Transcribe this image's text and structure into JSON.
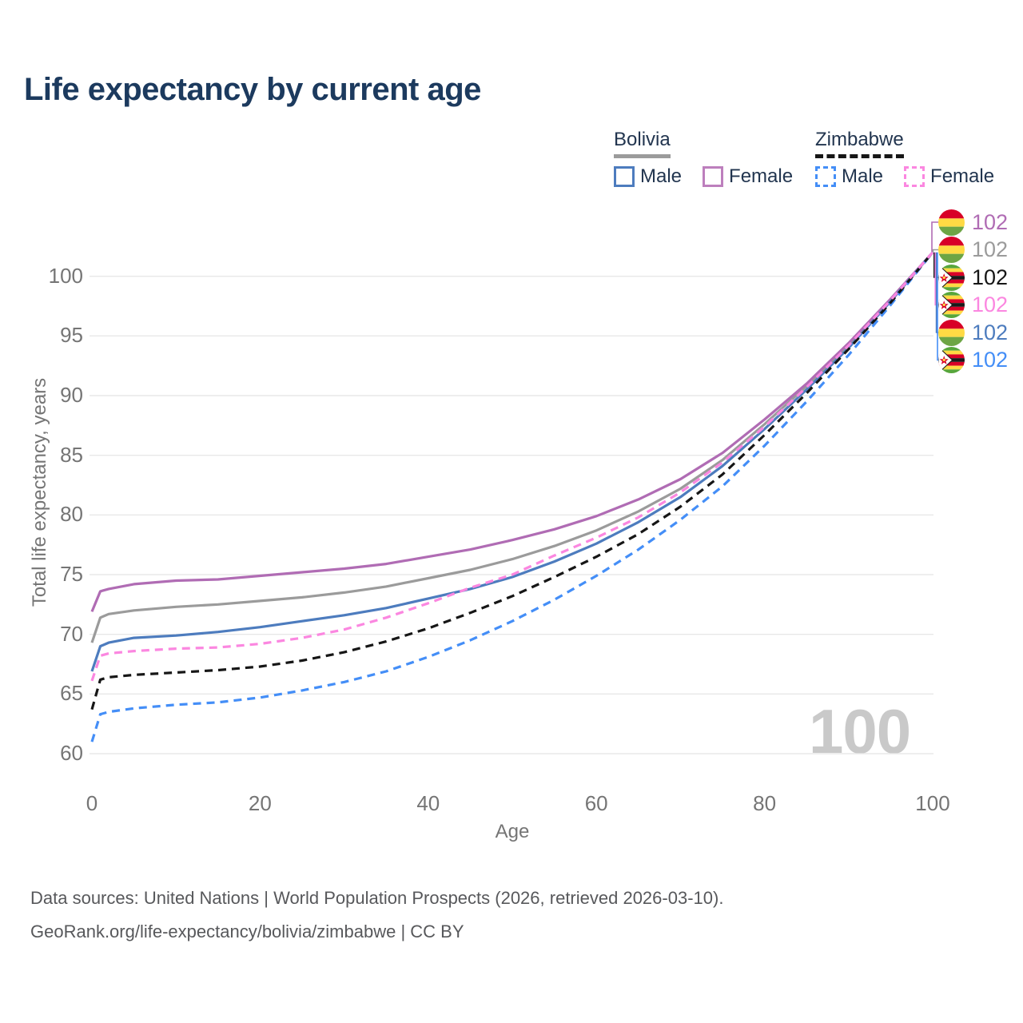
{
  "title": "Life expectancy by current age",
  "watermark": "100",
  "y_axis": {
    "title": "Total life expectancy, years",
    "ticks": [
      60,
      65,
      70,
      75,
      80,
      85,
      90,
      95,
      100
    ]
  },
  "x_axis": {
    "title": "Age",
    "ticks": [
      0,
      20,
      40,
      60,
      80,
      100
    ]
  },
  "legend": {
    "groups": [
      {
        "name": "Bolivia",
        "underline_color": "#9b9b9b",
        "underline_style": "solid",
        "items": [
          {
            "label": "Male",
            "color": "#4d7cbe",
            "dashed": false
          },
          {
            "label": "Female",
            "color": "#bd7fbd",
            "dashed": false
          }
        ]
      },
      {
        "name": "Zimbabwe",
        "underline_color": "#161616",
        "underline_style": "dashed",
        "items": [
          {
            "label": "Male",
            "color": "#448ef7",
            "dashed": true
          },
          {
            "label": "Female",
            "color": "#fb87e0",
            "dashed": true
          }
        ]
      }
    ]
  },
  "footer": {
    "line1": "Data sources: United Nations | World Population Prospects (2026, retrieved 2026-03-10).",
    "line2": "GeoRank.org/life-expectancy/bolivia/zimbabwe | CC BY"
  },
  "colors": {
    "title_text": "#1c3a5e",
    "legend_text": "#22354f",
    "axis_text": "#757575",
    "gridline": "#e8e8e8",
    "watermark": "#c9c9c9",
    "footer_text": "#57585b"
  },
  "chart_data": {
    "type": "line",
    "title": "Life expectancy by current age",
    "xlabel": "Age",
    "ylabel": "Total life expectancy, years",
    "xlim": [
      0,
      100
    ],
    "ylim": [
      60,
      103.5
    ],
    "xticks": [
      0,
      20,
      40,
      60,
      80,
      100
    ],
    "yticks": [
      60,
      65,
      70,
      75,
      80,
      85,
      90,
      95,
      100
    ],
    "grid": "horizontal-only",
    "legend_position": "top-right",
    "x": [
      0,
      1,
      2,
      5,
      10,
      15,
      20,
      25,
      30,
      35,
      40,
      45,
      50,
      55,
      60,
      65,
      70,
      75,
      80,
      85,
      90,
      95,
      100
    ],
    "series": [
      {
        "name": "Bolivia Female",
        "country": "Bolivia",
        "sex": "female",
        "flag": "bolivia",
        "color": "#b06cb4",
        "dashed": false,
        "end_label": "102",
        "values": [
          71.9,
          73.6,
          73.8,
          74.2,
          74.5,
          74.6,
          74.9,
          75.2,
          75.5,
          75.9,
          76.5,
          77.1,
          77.9,
          78.8,
          79.9,
          81.3,
          83.0,
          85.2,
          88.0,
          91.0,
          94.4,
          98.1,
          102
        ]
      },
      {
        "name": "Bolivia Both sexes",
        "country": "Bolivia",
        "sex": "both",
        "flag": "bolivia",
        "color": "#9b9b9b",
        "dashed": false,
        "end_label": "102",
        "values": [
          69.3,
          71.4,
          71.7,
          72.0,
          72.3,
          72.5,
          72.8,
          73.1,
          73.5,
          74.0,
          74.7,
          75.4,
          76.3,
          77.4,
          78.7,
          80.3,
          82.2,
          84.6,
          87.6,
          90.8,
          94.2,
          98.0,
          102
        ]
      },
      {
        "name": "Zimbabwe Both sexes",
        "country": "Zimbabwe",
        "sex": "both",
        "flag": "zimbabwe",
        "color": "#161616",
        "dashed": true,
        "end_label": "102",
        "values": [
          63.7,
          66.2,
          66.4,
          66.6,
          66.8,
          67.0,
          67.3,
          67.8,
          68.5,
          69.4,
          70.5,
          71.8,
          73.2,
          74.8,
          76.5,
          78.4,
          80.7,
          83.4,
          86.7,
          90.2,
          93.9,
          97.8,
          102
        ]
      },
      {
        "name": "Zimbabwe Female",
        "country": "Zimbabwe",
        "sex": "female",
        "flag": "zimbabwe",
        "color": "#fb87e0",
        "dashed": true,
        "end_label": "102",
        "values": [
          66.1,
          68.2,
          68.4,
          68.6,
          68.8,
          68.9,
          69.2,
          69.7,
          70.4,
          71.4,
          72.6,
          73.9,
          75.0,
          76.6,
          78.1,
          79.8,
          81.9,
          84.4,
          87.4,
          90.7,
          94.2,
          98.0,
          102
        ]
      },
      {
        "name": "Bolivia Male",
        "country": "Bolivia",
        "sex": "male",
        "flag": "bolivia",
        "color": "#4d7cbe",
        "dashed": false,
        "end_label": "102",
        "values": [
          66.9,
          69.0,
          69.3,
          69.7,
          69.9,
          70.2,
          70.6,
          71.1,
          71.6,
          72.2,
          73.0,
          73.8,
          74.8,
          76.1,
          77.6,
          79.4,
          81.5,
          84.1,
          87.2,
          90.5,
          94.0,
          97.9,
          102
        ]
      },
      {
        "name": "Zimbabwe Male",
        "country": "Zimbabwe",
        "sex": "male",
        "flag": "zimbabwe",
        "color": "#448ef7",
        "dashed": true,
        "end_label": "102",
        "values": [
          61.0,
          63.3,
          63.5,
          63.8,
          64.1,
          64.3,
          64.7,
          65.3,
          66.0,
          66.9,
          68.1,
          69.5,
          71.1,
          72.9,
          74.9,
          77.1,
          79.6,
          82.4,
          85.8,
          89.5,
          93.4,
          97.6,
          102
        ]
      }
    ]
  }
}
